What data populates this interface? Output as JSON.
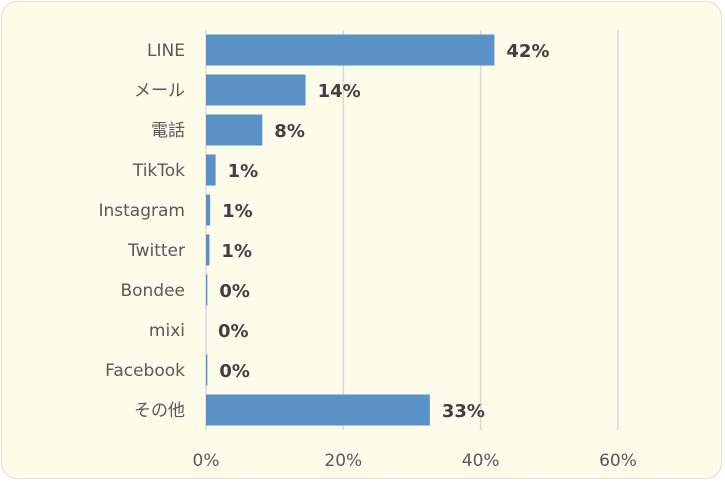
{
  "chart_data": {
    "type": "bar",
    "orientation": "horizontal",
    "categories": [
      "LINE",
      "メール",
      "電話",
      "TikTok",
      "Instagram",
      "Twitter",
      "Bondee",
      "mixi",
      "Facebook",
      "その他"
    ],
    "values": [
      42,
      14,
      8,
      1,
      1,
      1,
      0,
      0,
      0,
      33
    ],
    "bar_values_exact": [
      42,
      14.5,
      8.2,
      1.4,
      0.6,
      0.5,
      0.2,
      0,
      0.2,
      32.6
    ],
    "data_labels": [
      "42%",
      "14%",
      "8%",
      "1%",
      "1%",
      "1%",
      "0%",
      "0%",
      "0%",
      "33%"
    ],
    "xlim": [
      0,
      60
    ],
    "x_ticks": [
      "0%",
      "20%",
      "40%",
      "60%"
    ],
    "x_tick_values": [
      0,
      20,
      40,
      60
    ],
    "grid": true,
    "colors": {
      "bar": "#5a92c8",
      "grid": "#d9d9d9",
      "background": "#fdfbea"
    },
    "title": "",
    "xlabel": "",
    "ylabel": ""
  }
}
